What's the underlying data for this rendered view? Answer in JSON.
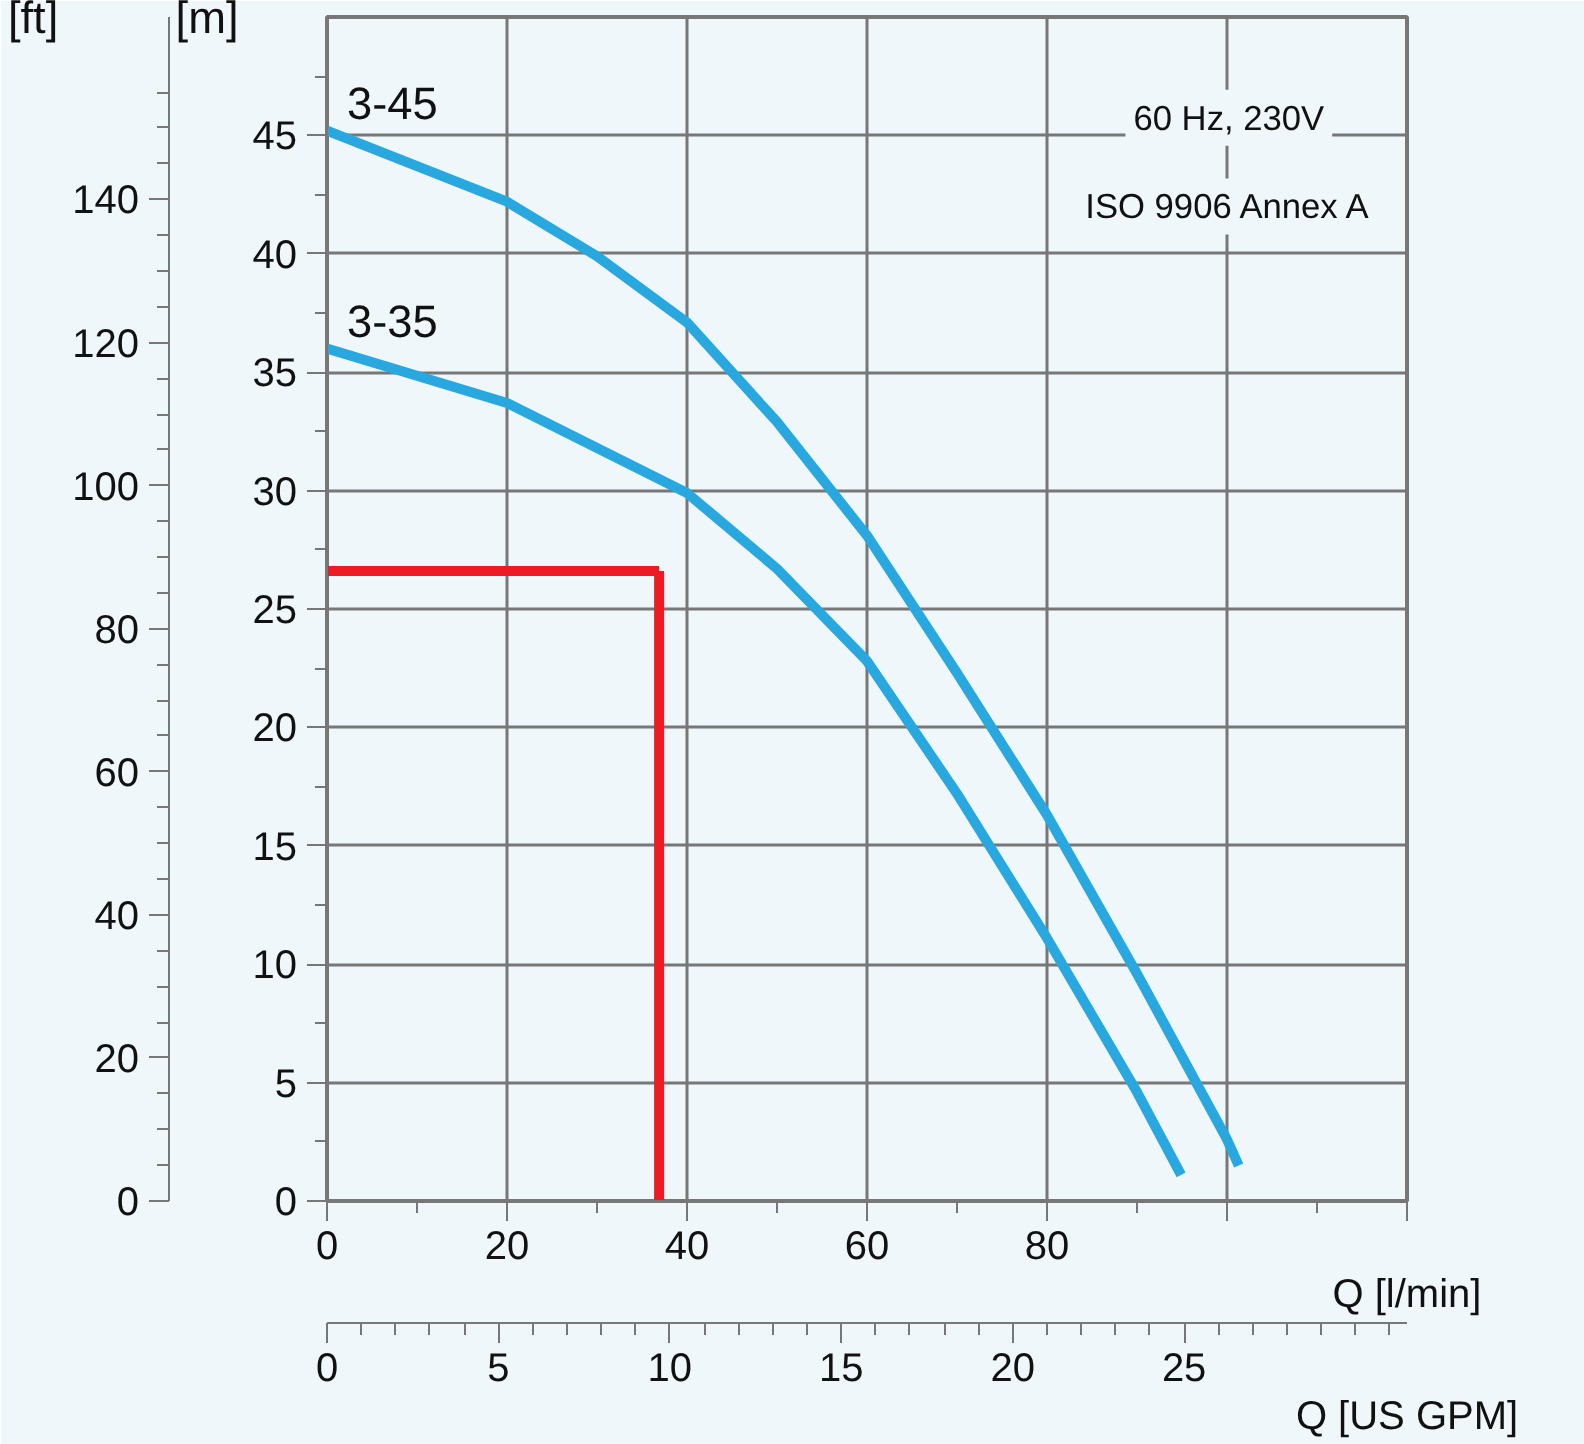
{
  "chart_data": {
    "type": "line",
    "xlabel": "Q [l/min]",
    "ylabel": "[m]",
    "y2label": "[ft]",
    "x2label": "Q [US GPM]",
    "xlim": [
      0,
      120
    ],
    "xticks": [
      0,
      20,
      40,
      60,
      80,
      {
        "value": 100,
        "label": null
      },
      {
        "value": 120,
        "label": null
      }
    ],
    "ylim": [
      0,
      50
    ],
    "yticks": [
      0,
      5,
      10,
      15,
      20,
      25,
      30,
      35,
      40,
      45
    ],
    "y2lim": [
      0,
      165.5
    ],
    "y2ticks": [
      0,
      20,
      40,
      60,
      80,
      100,
      120,
      140
    ],
    "x2lim": [
      0,
      31.5
    ],
    "x2ticks": [
      0,
      5,
      10,
      15,
      20,
      25
    ],
    "grid": true,
    "legend": false,
    "marker": "none",
    "line_style": "solid",
    "annotations": [
      "60 Hz, 230V",
      "ISO 9906 Annex A"
    ],
    "ref_lines": [
      {
        "axis": "y",
        "value": 26.6,
        "color": "#ed1c24"
      },
      {
        "axis": "x",
        "value": 36.9,
        "color": "#ed1c24"
      }
    ],
    "series": [
      {
        "name": "3-45",
        "color": "#29a8e0",
        "x": [
          0,
          20,
          30,
          40,
          50,
          60,
          70,
          80,
          90,
          100,
          101.3
        ],
        "values": [
          45.2,
          42.2,
          39.9,
          37.1,
          32.9,
          28.1,
          22.3,
          16.3,
          9.6,
          2.6,
          1.5
        ]
      },
      {
        "name": "3-35",
        "color": "#29a8e0",
        "x": [
          0,
          20,
          40,
          50,
          60,
          70,
          80,
          90,
          94.9
        ],
        "values": [
          36.0,
          33.7,
          29.9,
          26.7,
          22.8,
          17.2,
          11.1,
          4.6,
          1.1
        ]
      }
    ]
  }
}
